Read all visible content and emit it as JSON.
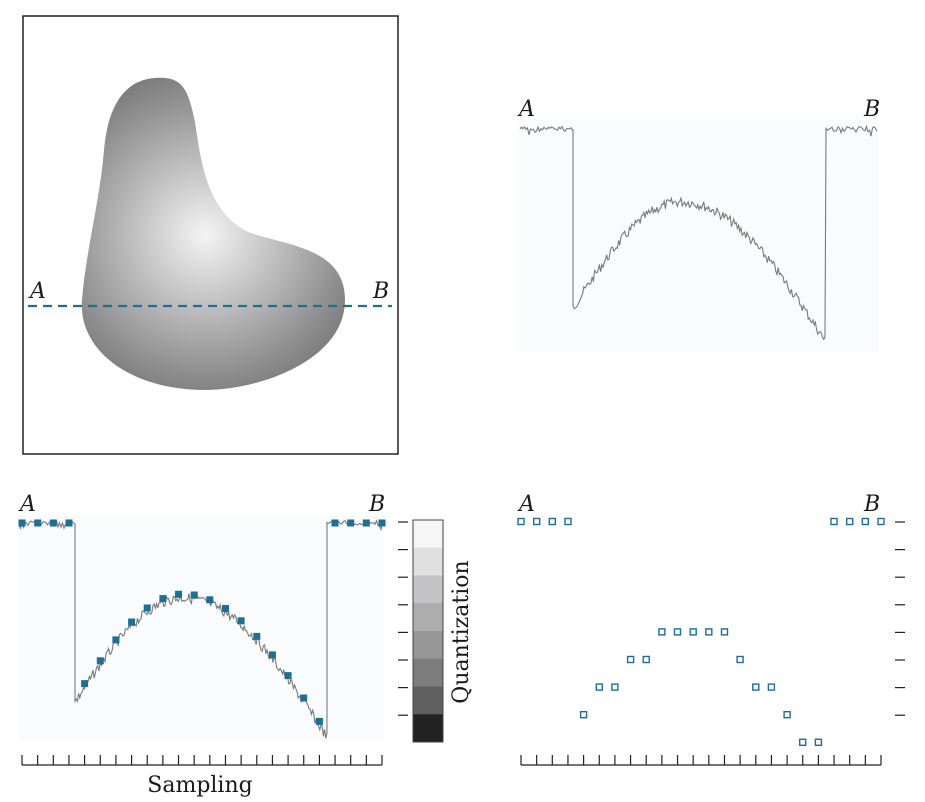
{
  "labels": {
    "a": "A",
    "b": "B",
    "sampling": "Sampling",
    "quantization": "Quantization"
  },
  "colors": {
    "accent": "#1f6e93",
    "profile": "#7a7a7a",
    "frame": "#222222"
  },
  "quantization_levels": [
    "#f6f6f6",
    "#e0e0e1",
    "#c3c3c5",
    "#adadae",
    "#969697",
    "#7d7d7e",
    "#5f5f60",
    "#222222"
  ],
  "samples": {
    "count": 24,
    "levels": [
      0,
      0,
      0,
      0,
      7,
      6,
      6,
      5,
      5,
      4,
      4,
      4,
      4,
      4,
      5,
      6,
      6,
      7,
      8,
      8,
      0,
      0,
      0,
      0
    ]
  }
}
